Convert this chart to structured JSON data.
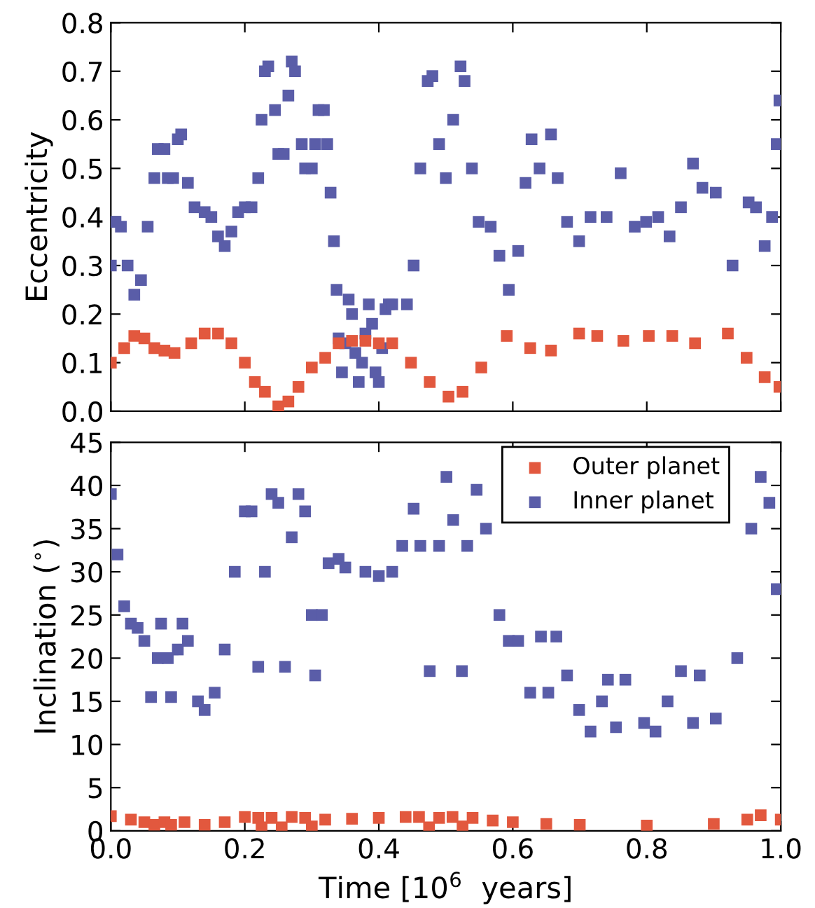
{
  "chart_data": [
    {
      "type": "scatter",
      "ylabel": "Eccentricity",
      "xlim": [
        0.0,
        1.0
      ],
      "xticks": [
        {
          "value": 0.0,
          "label": null
        },
        {
          "value": 0.2,
          "label": null
        },
        {
          "value": 0.4,
          "label": null
        },
        {
          "value": 0.6,
          "label": null
        },
        {
          "value": 0.8,
          "label": null
        },
        {
          "value": 1.0,
          "label": null
        }
      ],
      "ylim": [
        0.0,
        0.8
      ],
      "yticks": [
        {
          "value": 0.0,
          "label": "0.0"
        },
        {
          "value": 0.1,
          "label": "0.1"
        },
        {
          "value": 0.2,
          "label": "0.2"
        },
        {
          "value": 0.3,
          "label": "0.3"
        },
        {
          "value": 0.4,
          "label": "0.4"
        },
        {
          "value": 0.5,
          "label": "0.5"
        },
        {
          "value": 0.6,
          "label": "0.6"
        },
        {
          "value": 0.7,
          "label": "0.7"
        },
        {
          "value": 0.8,
          "label": "0.8"
        }
      ],
      "tick_labels": "y",
      "grid": false,
      "legend": false,
      "marker": "square",
      "series": [
        {
          "color": "#e2583e",
          "x": [
            0.0,
            0.02,
            0.035,
            0.05,
            0.065,
            0.08,
            0.095,
            0.12,
            0.14,
            0.16,
            0.18,
            0.2,
            0.215,
            0.23,
            0.25,
            0.265,
            0.28,
            0.3,
            0.32,
            0.34,
            0.36,
            0.38,
            0.4,
            0.42,
            0.448,
            0.476,
            0.504,
            0.525,
            0.553,
            0.591,
            0.626,
            0.657,
            0.699,
            0.726,
            0.765,
            0.803,
            0.838,
            0.872,
            0.921,
            0.949,
            0.976,
            0.998
          ],
          "values": [
            0.1,
            0.13,
            0.155,
            0.15,
            0.13,
            0.125,
            0.12,
            0.14,
            0.16,
            0.16,
            0.14,
            0.1,
            0.06,
            0.04,
            0.01,
            0.02,
            0.05,
            0.09,
            0.11,
            0.14,
            0.145,
            0.145,
            0.14,
            0.14,
            0.1,
            0.06,
            0.03,
            0.04,
            0.09,
            0.155,
            0.13,
            0.125,
            0.16,
            0.155,
            0.145,
            0.155,
            0.155,
            0.14,
            0.16,
            0.11,
            0.07,
            0.05
          ]
        },
        {
          "color": "#5a5da8",
          "x": [
            0.0,
            0.007,
            0.015,
            0.025,
            0.035,
            0.045,
            0.055,
            0.065,
            0.07,
            0.08,
            0.085,
            0.093,
            0.1,
            0.105,
            0.115,
            0.125,
            0.14,
            0.15,
            0.16,
            0.17,
            0.18,
            0.19,
            0.2,
            0.21,
            0.22,
            0.225,
            0.23,
            0.235,
            0.245,
            0.25,
            0.258,
            0.265,
            0.27,
            0.275,
            0.285,
            0.29,
            0.3,
            0.305,
            0.31,
            0.318,
            0.323,
            0.328,
            0.333,
            0.337,
            0.34,
            0.345,
            0.35,
            0.355,
            0.36,
            0.365,
            0.37,
            0.375,
            0.38,
            0.385,
            0.39,
            0.395,
            0.4,
            0.405,
            0.41,
            0.415,
            0.42,
            0.442,
            0.452,
            0.462,
            0.473,
            0.48,
            0.49,
            0.5,
            0.511,
            0.522,
            0.528,
            0.539,
            0.549,
            0.567,
            0.58,
            0.594,
            0.608,
            0.619,
            0.628,
            0.64,
            0.657,
            0.667,
            0.681,
            0.699,
            0.716,
            0.74,
            0.761,
            0.782,
            0.799,
            0.817,
            0.834,
            0.851,
            0.869,
            0.883,
            0.903,
            0.928,
            0.952,
            0.963,
            0.976,
            0.987,
            0.994,
            0.998
          ],
          "values": [
            0.3,
            0.39,
            0.38,
            0.3,
            0.24,
            0.27,
            0.38,
            0.48,
            0.54,
            0.54,
            0.48,
            0.48,
            0.56,
            0.57,
            0.47,
            0.42,
            0.41,
            0.4,
            0.36,
            0.34,
            0.37,
            0.41,
            0.42,
            0.42,
            0.48,
            0.6,
            0.7,
            0.71,
            0.62,
            0.53,
            0.53,
            0.65,
            0.72,
            0.7,
            0.55,
            0.5,
            0.5,
            0.55,
            0.62,
            0.62,
            0.55,
            0.45,
            0.35,
            0.25,
            0.15,
            0.08,
            0.14,
            0.23,
            0.2,
            0.12,
            0.06,
            0.1,
            0.16,
            0.22,
            0.18,
            0.08,
            0.06,
            0.13,
            0.21,
            0.22,
            0.22,
            0.22,
            0.3,
            0.5,
            0.68,
            0.69,
            0.55,
            0.48,
            0.6,
            0.71,
            0.68,
            0.5,
            0.39,
            0.38,
            0.32,
            0.25,
            0.33,
            0.47,
            0.56,
            0.5,
            0.57,
            0.48,
            0.39,
            0.35,
            0.4,
            0.4,
            0.49,
            0.38,
            0.39,
            0.4,
            0.36,
            0.42,
            0.51,
            0.46,
            0.45,
            0.3,
            0.43,
            0.42,
            0.34,
            0.4,
            0.55,
            0.64
          ]
        }
      ]
    },
    {
      "type": "scatter",
      "xlabel": "Time [10$^{6}$  years]",
      "ylabel": "Inclination ($^{∘}$)",
      "xlim": [
        0.0,
        1.0
      ],
      "xticks": [
        {
          "value": 0.0,
          "label": "0.0"
        },
        {
          "value": 0.2,
          "label": "0.2"
        },
        {
          "value": 0.4,
          "label": "0.4"
        },
        {
          "value": 0.6,
          "label": "0.6"
        },
        {
          "value": 0.8,
          "label": "0.8"
        },
        {
          "value": 1.0,
          "label": "1.0"
        }
      ],
      "ylim": [
        0,
        45
      ],
      "yticks": [
        0,
        5,
        10,
        15,
        20,
        25,
        30,
        35,
        40,
        45
      ],
      "grid": false,
      "legend": "top right",
      "marker": "square",
      "series": [
        {
          "name": "Outer planet",
          "color": "#e2583e",
          "x": [
            0.0,
            0.03,
            0.05,
            0.065,
            0.08,
            0.09,
            0.11,
            0.14,
            0.17,
            0.2,
            0.22,
            0.225,
            0.24,
            0.255,
            0.27,
            0.29,
            0.3,
            0.32,
            0.36,
            0.4,
            0.44,
            0.46,
            0.475,
            0.49,
            0.51,
            0.525,
            0.54,
            0.57,
            0.6,
            0.65,
            0.7,
            0.8,
            0.9,
            0.95,
            0.97,
            1.0
          ],
          "values": [
            1.7,
            1.3,
            1.0,
            0.7,
            1.0,
            0.7,
            1.0,
            0.7,
            1.0,
            1.6,
            1.5,
            0.4,
            1.5,
            0.4,
            1.6,
            1.5,
            0.5,
            1.3,
            1.4,
            1.5,
            1.6,
            1.6,
            0.4,
            1.5,
            1.6,
            0.5,
            1.5,
            1.2,
            1.0,
            0.8,
            0.7,
            0.6,
            0.8,
            1.3,
            1.8,
            1.3
          ]
        },
        {
          "name": "Inner planet",
          "color": "#5a5da8",
          "x": [
            0.0,
            0.01,
            0.02,
            0.03,
            0.04,
            0.05,
            0.06,
            0.07,
            0.075,
            0.085,
            0.09,
            0.1,
            0.107,
            0.115,
            0.13,
            0.14,
            0.155,
            0.17,
            0.185,
            0.2,
            0.21,
            0.22,
            0.23,
            0.24,
            0.25,
            0.26,
            0.27,
            0.28,
            0.29,
            0.3,
            0.305,
            0.315,
            0.325,
            0.34,
            0.35,
            0.38,
            0.4,
            0.42,
            0.435,
            0.452,
            0.462,
            0.476,
            0.49,
            0.501,
            0.511,
            0.524,
            0.532,
            0.546,
            0.56,
            0.58,
            0.594,
            0.608,
            0.626,
            0.642,
            0.653,
            0.665,
            0.681,
            0.699,
            0.716,
            0.733,
            0.742,
            0.754,
            0.768,
            0.796,
            0.813,
            0.831,
            0.851,
            0.869,
            0.879,
            0.903,
            0.935,
            0.956,
            0.97,
            0.983,
            0.994
          ],
          "values": [
            39,
            32,
            26,
            24,
            23.5,
            22,
            15.5,
            20,
            24,
            20,
            15.5,
            21,
            24,
            22,
            15,
            14,
            16,
            21,
            30,
            37,
            37,
            19,
            30,
            39,
            38,
            19,
            34,
            39,
            37,
            25,
            18,
            25,
            31,
            31.5,
            30.5,
            30,
            29.5,
            30,
            33,
            37.3,
            33,
            18.5,
            33,
            41,
            36,
            18.5,
            33,
            39.5,
            35,
            25,
            22,
            22,
            16,
            22.5,
            16,
            22.5,
            18,
            14,
            11.5,
            15,
            17.5,
            12,
            17.5,
            12.5,
            11.5,
            15,
            18.5,
            12.5,
            18,
            13,
            20,
            35,
            41,
            38,
            28
          ]
        }
      ]
    }
  ]
}
